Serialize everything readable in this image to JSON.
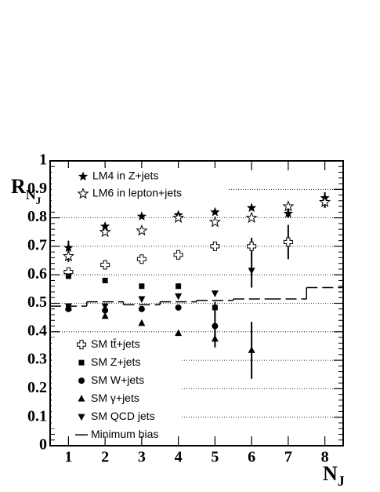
{
  "chart_data": {
    "type": "scatter",
    "y_label": [
      "R",
      "N",
      "J"
    ],
    "x_label": [
      "N",
      "J"
    ],
    "x": [
      1,
      2,
      3,
      4,
      5,
      6,
      7,
      8
    ],
    "xlim": [
      0.5,
      8.5
    ],
    "xticks": [
      1,
      2,
      3,
      4,
      5,
      6,
      7,
      8
    ],
    "ylim": [
      0,
      1
    ],
    "yticks": [
      0,
      0.1,
      0.2,
      0.3,
      0.4,
      0.5,
      0.6,
      0.7,
      0.8,
      0.9,
      1
    ],
    "grid": true,
    "series": [
      {
        "name": "LM4 in Z+jets",
        "marker": "star",
        "color": "#000000",
        "values": [
          0.695,
          0.77,
          0.805,
          0.81,
          0.82,
          0.835,
          0.815,
          0.87
        ],
        "errors": [
          0.025,
          0.01,
          null,
          null,
          null,
          null,
          0.015,
          0.02
        ]
      },
      {
        "name": "LM6 in lepton+jets",
        "marker": "open-star",
        "color": "#000000",
        "values": [
          0.665,
          0.75,
          0.755,
          0.8,
          0.785,
          0.8,
          0.84,
          0.855
        ],
        "errors": [
          0.02,
          0.01,
          null,
          null,
          null,
          null,
          0.015,
          0.02
        ]
      },
      {
        "name": "SM tt̄+jets",
        "marker": "open-cross",
        "color": "#000000",
        "values": [
          0.61,
          0.635,
          0.655,
          0.67,
          0.7,
          0.7,
          0.715,
          null
        ],
        "errors": [
          null,
          null,
          null,
          null,
          null,
          0.03,
          0.06,
          null
        ]
      },
      {
        "name": "SM Z+jets",
        "marker": "square",
        "color": "#000000",
        "values": [
          0.595,
          0.58,
          0.56,
          0.56,
          0.485,
          null,
          null,
          null
        ],
        "errors": [
          null,
          null,
          null,
          0.01,
          0.02,
          null,
          null,
          null
        ]
      },
      {
        "name": "SM W+jets",
        "marker": "circle",
        "color": "#000000",
        "values": [
          0.48,
          0.475,
          0.48,
          0.485,
          0.42,
          null,
          null,
          null
        ],
        "errors": [
          null,
          0.01,
          null,
          null,
          0.05,
          null,
          null,
          null
        ]
      },
      {
        "name": "SM γ+jets",
        "marker": "triangle-up",
        "color": "#000000",
        "values": [
          0.485,
          0.455,
          0.43,
          0.395,
          0.375,
          0.335,
          null,
          null
        ],
        "errors": [
          null,
          null,
          null,
          null,
          0.03,
          0.1,
          null,
          null
        ]
      },
      {
        "name": "SM QCD jets",
        "marker": "triangle-down",
        "color": "#000000",
        "values": [
          0.49,
          0.49,
          0.515,
          0.525,
          0.535,
          0.615,
          null,
          null
        ],
        "errors": [
          null,
          null,
          null,
          null,
          0.01,
          0.06,
          null,
          null
        ]
      },
      {
        "name": "Minimum bias",
        "marker": "step",
        "color": "#000000",
        "bins": [
          0.5,
          1.5,
          2.5,
          3.5,
          4.5,
          5.5,
          6.5,
          7.5,
          8.5
        ],
        "values": [
          0.49,
          0.505,
          0.495,
          0.505,
          0.51,
          0.515,
          0.515,
          0.555
        ]
      }
    ]
  }
}
